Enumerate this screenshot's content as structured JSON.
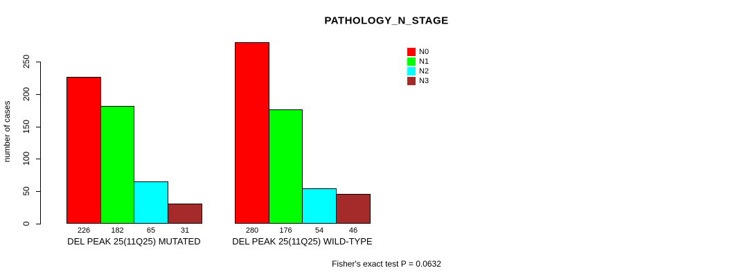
{
  "footnote": "Fisher's exact test P = 0.0632",
  "chart_data": {
    "type": "bar",
    "title": "PATHOLOGY_N_STAGE",
    "xlabel": "",
    "ylabel": "number of cases",
    "ylim": [
      0,
      250
    ],
    "yticks": [
      0,
      50,
      100,
      150,
      200,
      250
    ],
    "grid": false,
    "legend": {
      "position": "top-right",
      "entries": [
        {
          "label": "N0",
          "color": "#FF0000"
        },
        {
          "label": "N1",
          "color": "#00FF00"
        },
        {
          "label": "N2",
          "color": "#00FFFF"
        },
        {
          "label": "N3",
          "color": "#A52A2A"
        }
      ]
    },
    "series_colors": [
      "#FF0000",
      "#00FF00",
      "#00FFFF",
      "#A52A2A"
    ],
    "bar_value_labels_shown": true,
    "groups": [
      {
        "label": "DEL PEAK 25(11Q25) MUTATED",
        "categories": [
          "N0",
          "N1",
          "N2",
          "N3"
        ],
        "values": [
          226,
          182,
          65,
          31
        ]
      },
      {
        "label": "DEL PEAK 25(11Q25) WILD-TYPE",
        "categories": [
          "N0",
          "N1",
          "N2",
          "N3"
        ],
        "values": [
          280,
          176,
          54,
          46
        ]
      }
    ]
  }
}
